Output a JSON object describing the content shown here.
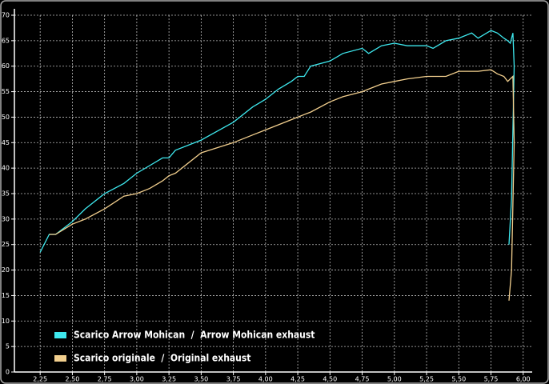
{
  "chart_data": {
    "type": "line",
    "x": [
      2.25,
      2.32,
      2.37,
      2.5,
      2.6,
      2.75,
      2.9,
      3.0,
      3.1,
      3.2,
      3.25,
      3.3,
      3.5,
      3.75,
      3.9,
      4.0,
      4.1,
      4.2,
      4.25,
      4.3,
      4.35,
      4.5,
      4.6,
      4.75,
      4.8,
      4.9,
      5.0,
      5.1,
      5.25,
      5.3,
      5.4,
      5.5,
      5.6,
      5.65,
      5.75,
      5.8,
      5.85,
      5.88,
      5.9,
      5.92,
      5.93,
      5.91,
      5.89
    ],
    "series": [
      {
        "name": "Scarico Arrow Mohican  /  Arrow Mohican exhaust",
        "color": "#3ee8ee",
        "values": [
          23.5,
          27,
          27,
          29.5,
          32,
          35,
          37,
          39,
          40.5,
          42,
          42,
          43.5,
          45.5,
          49,
          52,
          53.5,
          55.5,
          57,
          58,
          58,
          60,
          61,
          62.5,
          63.5,
          62.5,
          64,
          64.5,
          64,
          64,
          63.5,
          65,
          65.5,
          66.5,
          65.5,
          67,
          66.5,
          65.5,
          65,
          64.5,
          66.5,
          60,
          34,
          25
        ]
      },
      {
        "name": "Scarico originale  /  Original exhaust",
        "color": "#f2cf8e",
        "values": [
          null,
          27,
          27,
          29,
          30,
          32,
          34.5,
          35,
          36,
          37.5,
          38.5,
          39,
          43,
          45,
          46.5,
          47.5,
          48.5,
          49.5,
          50,
          50.5,
          51,
          53,
          54,
          55,
          55.5,
          56.5,
          57,
          57.5,
          58,
          58,
          58,
          59,
          59,
          59,
          59.3,
          58.5,
          58,
          57,
          57.5,
          58,
          45,
          20,
          14
        ]
      }
    ],
    "xlim": [
      2.05,
      6.07
    ],
    "xticks": [
      {
        "value": 2.25,
        "label": "2,25"
      },
      {
        "value": 2.5,
        "label": "2,50"
      },
      {
        "value": 2.75,
        "label": "2,75"
      },
      {
        "value": 3.0,
        "label": "3,00"
      },
      {
        "value": 3.25,
        "label": "3,25"
      },
      {
        "value": 3.5,
        "label": "3,50"
      },
      {
        "value": 3.75,
        "label": "3,75"
      },
      {
        "value": 4.0,
        "label": "4,00"
      },
      {
        "value": 4.25,
        "label": "4,25"
      },
      {
        "value": 4.5,
        "label": "4,50"
      },
      {
        "value": 4.75,
        "label": "4,75"
      },
      {
        "value": 5.0,
        "label": "5,00"
      },
      {
        "value": 5.25,
        "label": "5,25"
      },
      {
        "value": 5.5,
        "label": "5,50"
      },
      {
        "value": 5.75,
        "label": "5,75"
      },
      {
        "value": 6.0,
        "label": "6,00"
      }
    ],
    "ylim": [
      0,
      70
    ],
    "yticks": [
      0,
      5,
      10,
      15,
      20,
      25,
      30,
      35,
      40,
      45,
      50,
      55,
      60,
      65,
      70
    ],
    "grid": true
  }
}
